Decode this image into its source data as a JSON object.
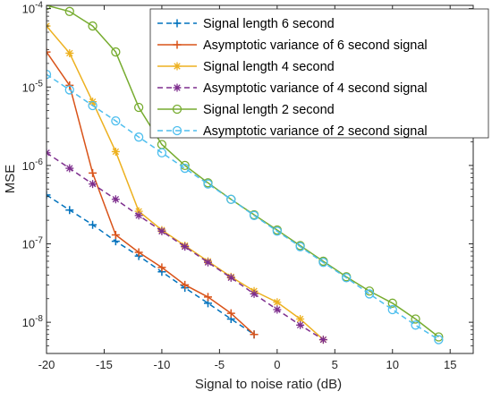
{
  "chart_data": {
    "type": "line",
    "xlabel": "Signal to noise ratio (dB)",
    "ylabel": "MSE",
    "xlim": [
      -20,
      17
    ],
    "ylim": [
      4e-09,
      0.00011
    ],
    "yscale": "log",
    "grid": false,
    "legend_position": "top-right",
    "x_ticks": [
      "-20",
      "-15",
      "-10",
      "-5",
      "0",
      "5",
      "10",
      "15"
    ],
    "y_ticks": [
      {
        "base": "10",
        "exp": "-8"
      },
      {
        "base": "10",
        "exp": "-7"
      },
      {
        "base": "10",
        "exp": "-6"
      },
      {
        "base": "10",
        "exp": "-5"
      },
      {
        "base": "10",
        "exp": "-4"
      }
    ],
    "series": [
      {
        "name": "Signal length 6 second",
        "color": "#0072BD",
        "dash": true,
        "marker": "plus",
        "x": [
          -20,
          -18,
          -16,
          -14,
          -12,
          -10,
          -8,
          -6,
          -4,
          -2
        ],
        "y": [
          4.2e-07,
          2.7e-07,
          1.75e-07,
          1.08e-07,
          7e-08,
          4.4e-08,
          2.75e-08,
          1.75e-08,
          1.1e-08,
          7e-09
        ]
      },
      {
        "name": "Asymptotic variance of 6 second signal",
        "color": "#D95319",
        "dash": false,
        "marker": "plus",
        "x": [
          -20,
          -18,
          -16,
          -14,
          -12,
          -10,
          -8,
          -6,
          -4,
          -2
        ],
        "y": [
          2.8e-05,
          1.05e-05,
          8e-07,
          1.3e-07,
          7.8e-08,
          5e-08,
          3e-08,
          2.1e-08,
          1.3e-08,
          7e-09
        ]
      },
      {
        "name": "Signal length 4 second",
        "color": "#EDB120",
        "dash": false,
        "marker": "star",
        "x": [
          -20,
          -18,
          -16,
          -14,
          -12,
          -10,
          -8,
          -6,
          -4,
          -2,
          0,
          2,
          4
        ],
        "y": [
          6e-05,
          2.7e-05,
          6.5e-06,
          1.5e-06,
          2.6e-07,
          1.5e-07,
          9.5e-08,
          6e-08,
          3.8e-08,
          2.5e-08,
          1.8e-08,
          1.1e-08,
          6e-09
        ]
      },
      {
        "name": "Asymptotic variance of 4 second signal",
        "color": "#7E2F8E",
        "dash": true,
        "marker": "star",
        "x": [
          -20,
          -18,
          -16,
          -14,
          -12,
          -10,
          -8,
          -6,
          -4,
          -2,
          0,
          2,
          4
        ],
        "y": [
          1.45e-06,
          9.2e-07,
          5.8e-07,
          3.7e-07,
          2.3e-07,
          1.45e-07,
          9.2e-08,
          5.8e-08,
          3.7e-08,
          2.3e-08,
          1.45e-08,
          9.2e-09,
          6e-09
        ]
      },
      {
        "name": "Signal length 2 second",
        "color": "#77AC30",
        "dash": false,
        "marker": "circle",
        "x": [
          -20,
          -18,
          -16,
          -14,
          -12,
          -10,
          -8,
          -6,
          -4,
          -2,
          0,
          2,
          4,
          6,
          8,
          10,
          12,
          14
        ],
        "y": [
          0.00011,
          9.2e-05,
          6e-05,
          2.8e-05,
          5.5e-06,
          1.85e-06,
          1e-06,
          6e-07,
          3.7e-07,
          2.35e-07,
          1.5e-07,
          9.5e-08,
          6e-08,
          3.8e-08,
          2.5e-08,
          1.75e-08,
          1.1e-08,
          6.5e-09
        ]
      },
      {
        "name": "Asymptotic variance of 2 second signal",
        "color": "#4DBEEE",
        "dash": true,
        "marker": "circle",
        "x": [
          -20,
          -18,
          -16,
          -14,
          -12,
          -10,
          -8,
          -6,
          -4,
          -2,
          0,
          2,
          4,
          6,
          8,
          10,
          12,
          14
        ],
        "y": [
          1.45e-05,
          9.2e-06,
          5.8e-06,
          3.7e-06,
          2.3e-06,
          1.45e-06,
          9.2e-07,
          5.8e-07,
          3.7e-07,
          2.3e-07,
          1.45e-07,
          9.2e-08,
          5.8e-08,
          3.7e-08,
          2.3e-08,
          1.45e-08,
          9.2e-09,
          6e-09
        ]
      }
    ]
  }
}
